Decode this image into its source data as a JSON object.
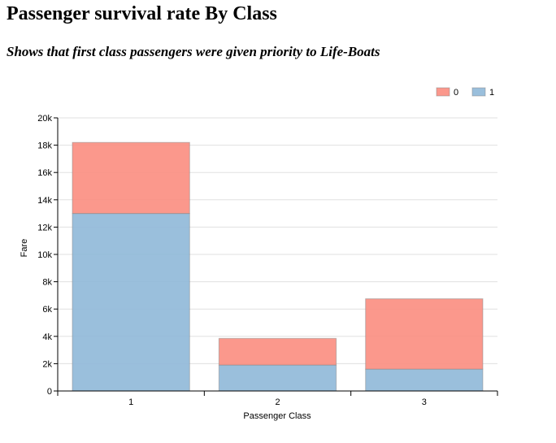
{
  "header": {
    "title": "Passenger survival rate By Class",
    "subtitle": "Shows that first class passengers were given priority to Life-Boats"
  },
  "chart_data": {
    "type": "bar",
    "stacked": true,
    "categories": [
      "1",
      "2",
      "3"
    ],
    "series": [
      {
        "name": "1",
        "color": "#8fb8d8",
        "values": [
          13000,
          1900,
          1600
        ]
      },
      {
        "name": "0",
        "color": "#fb8d80",
        "values": [
          5200,
          1950,
          5150
        ]
      }
    ],
    "legend": {
      "placement": "top-right",
      "order": [
        "0",
        "1"
      ]
    },
    "xlabel": "Passenger Class",
    "ylabel": "Fare",
    "ylim": [
      0,
      20000
    ],
    "yticks": [
      0,
      2000,
      4000,
      6000,
      8000,
      10000,
      12000,
      14000,
      16000,
      18000,
      20000
    ],
    "ytick_labels": [
      "0",
      "2k",
      "4k",
      "6k",
      "8k",
      "10k",
      "12k",
      "14k",
      "16k",
      "18k",
      "20k"
    ],
    "grid": true
  }
}
